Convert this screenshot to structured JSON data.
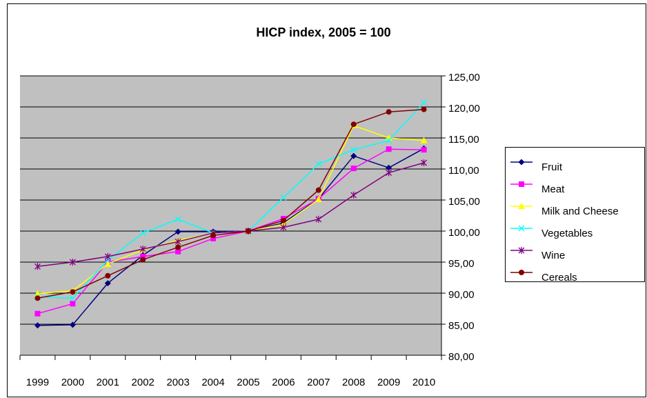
{
  "chart_data": {
    "type": "line",
    "title": "HICP index, 2005 = 100",
    "categories": [
      "1999",
      "2000",
      "2001",
      "2002",
      "2003",
      "2004",
      "2005",
      "2006",
      "2007",
      "2008",
      "2009",
      "2010"
    ],
    "series": [
      {
        "name": "Fruit",
        "color": "#000080",
        "marker": "diamond",
        "values": [
          84.8,
          84.9,
          91.6,
          96.1,
          99.9,
          99.9,
          100,
          101.3,
          105.2,
          112.1,
          110.2,
          113.3
        ]
      },
      {
        "name": "Meat",
        "color": "#ff00ff",
        "marker": "square",
        "values": [
          86.7,
          88.3,
          95,
          95.9,
          96.7,
          98.8,
          100,
          102,
          105.2,
          110.1,
          113.2,
          113.1
        ]
      },
      {
        "name": "Milk and Cheese",
        "color": "#ffff00",
        "marker": "triangle",
        "values": [
          89.9,
          90.4,
          94.7,
          97,
          98.5,
          99.7,
          100,
          101.1,
          105.1,
          117,
          115,
          114.6
        ]
      },
      {
        "name": "Vegetables",
        "color": "#00ffff",
        "marker": "x",
        "values": [
          89.4,
          89.2,
          95.3,
          99.7,
          101.9,
          99.7,
          100,
          105.4,
          110.8,
          113.1,
          114.6,
          120.7
        ]
      },
      {
        "name": "Wine",
        "color": "#800080",
        "marker": "star",
        "values": [
          94.3,
          95,
          95.9,
          97.1,
          98.3,
          99.7,
          100,
          100.6,
          101.9,
          105.8,
          109.4,
          111
        ]
      },
      {
        "name": "Cereals",
        "color": "#800000",
        "marker": "circle",
        "values": [
          89.2,
          90.2,
          92.8,
          95.4,
          97.4,
          99.3,
          100,
          101.7,
          106.6,
          117.2,
          119.2,
          119.6
        ]
      }
    ],
    "ylim": [
      80,
      125
    ],
    "yticks": [
      {
        "value": 80,
        "label": "80,00"
      },
      {
        "value": 85,
        "label": "85,00"
      },
      {
        "value": 90,
        "label": "90,00"
      },
      {
        "value": 95,
        "label": "95,00"
      },
      {
        "value": 100,
        "label": "100,00"
      },
      {
        "value": 105,
        "label": "105,00"
      },
      {
        "value": 110,
        "label": "110,00"
      },
      {
        "value": 115,
        "label": "115,00"
      },
      {
        "value": 120,
        "label": "120,00"
      },
      {
        "value": 125,
        "label": "125,00"
      }
    ],
    "grid": true,
    "legend": "right",
    "plot_background": "#c0c0c0"
  }
}
